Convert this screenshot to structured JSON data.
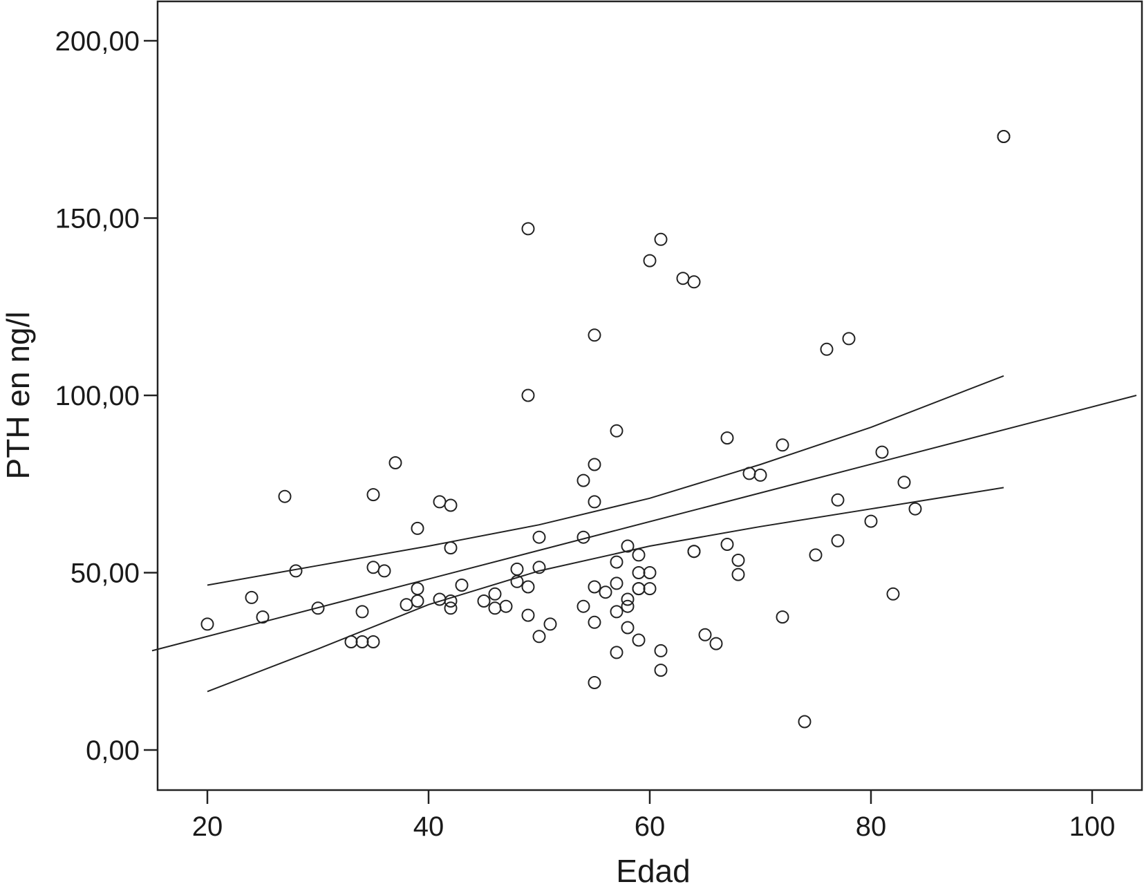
{
  "chart_data": {
    "type": "scatter",
    "xlabel": "Edad",
    "ylabel": "PTH en ng/l",
    "xlim": [
      15,
      104
    ],
    "ylim": [
      -10,
      211
    ],
    "x_ticks": [
      {
        "value": 20,
        "label": "20"
      },
      {
        "value": 40,
        "label": "40"
      },
      {
        "value": 60,
        "label": "60"
      },
      {
        "value": 80,
        "label": "80"
      },
      {
        "value": 100,
        "label": "100"
      }
    ],
    "y_ticks": [
      {
        "value": 0,
        "label": "0,00"
      },
      {
        "value": 50,
        "label": "50,00"
      },
      {
        "value": 100,
        "label": "100,00"
      },
      {
        "value": 150,
        "label": "150,00"
      },
      {
        "value": 200,
        "label": "200,00"
      }
    ],
    "grid": false,
    "marker": "open-circle",
    "points": [
      [
        20,
        35.5
      ],
      [
        24,
        43
      ],
      [
        25,
        37.5
      ],
      [
        27,
        71.5
      ],
      [
        28,
        50.5
      ],
      [
        30,
        40
      ],
      [
        33,
        30.5
      ],
      [
        34,
        30.5
      ],
      [
        34,
        39
      ],
      [
        35,
        30.5
      ],
      [
        35,
        72
      ],
      [
        35,
        51.5
      ],
      [
        36,
        50.5
      ],
      [
        37,
        81
      ],
      [
        38,
        41
      ],
      [
        39,
        42
      ],
      [
        39,
        45.5
      ],
      [
        39,
        62.5
      ],
      [
        41,
        42.5
      ],
      [
        41,
        70
      ],
      [
        42,
        69
      ],
      [
        42,
        57
      ],
      [
        42,
        42
      ],
      [
        42,
        40
      ],
      [
        43,
        46.5
      ],
      [
        45,
        42
      ],
      [
        46,
        44
      ],
      [
        46,
        40
      ],
      [
        47,
        40.5
      ],
      [
        48,
        51
      ],
      [
        48,
        47.5
      ],
      [
        49,
        147
      ],
      [
        49,
        100
      ],
      [
        49,
        46
      ],
      [
        49,
        38
      ],
      [
        50,
        60
      ],
      [
        50,
        51.5
      ],
      [
        50,
        32
      ],
      [
        51,
        35.5
      ],
      [
        54,
        76
      ],
      [
        54,
        60
      ],
      [
        54,
        40.5
      ],
      [
        55,
        117
      ],
      [
        55,
        80.5
      ],
      [
        55,
        70
      ],
      [
        55,
        46
      ],
      [
        55,
        36
      ],
      [
        55,
        19
      ],
      [
        56,
        44.5
      ],
      [
        57,
        90
      ],
      [
        57,
        53
      ],
      [
        57,
        47
      ],
      [
        57,
        39
      ],
      [
        57,
        27.5
      ],
      [
        58,
        57.5
      ],
      [
        58,
        42.5
      ],
      [
        58,
        40.5
      ],
      [
        58,
        34.5
      ],
      [
        59,
        55
      ],
      [
        59,
        50
      ],
      [
        59,
        45.5
      ],
      [
        59,
        45.5
      ],
      [
        59,
        31
      ],
      [
        60,
        138
      ],
      [
        60,
        50
      ],
      [
        60,
        45.5
      ],
      [
        61,
        144
      ],
      [
        61,
        28
      ],
      [
        61,
        22.5
      ],
      [
        63,
        133
      ],
      [
        64,
        132
      ],
      [
        64,
        56
      ],
      [
        64,
        56
      ],
      [
        65,
        32.5
      ],
      [
        66,
        30
      ],
      [
        67,
        88
      ],
      [
        67,
        58
      ],
      [
        68,
        53.5
      ],
      [
        68,
        49.5
      ],
      [
        69,
        78
      ],
      [
        70,
        77.5
      ],
      [
        72,
        86
      ],
      [
        72,
        37.5
      ],
      [
        74,
        8
      ],
      [
        75,
        55
      ],
      [
        76,
        113
      ],
      [
        77,
        70.5
      ],
      [
        77,
        59
      ],
      [
        78,
        116
      ],
      [
        80,
        64.5
      ],
      [
        81,
        84
      ],
      [
        82,
        44
      ],
      [
        83,
        75.5
      ],
      [
        84,
        68
      ],
      [
        92,
        173
      ],
      [
        92,
        173
      ]
    ],
    "fit_line": {
      "x": [
        15,
        104
      ],
      "y": [
        28,
        100
      ]
    },
    "confidence_upper": {
      "x": [
        20,
        30,
        40,
        50,
        60,
        70,
        80,
        92
      ],
      "y": [
        46.5,
        52,
        57.5,
        63.5,
        71,
        80.5,
        91,
        105.5
      ]
    },
    "confidence_lower": {
      "x": [
        20,
        30,
        40,
        50,
        60,
        70,
        80,
        92
      ],
      "y": [
        16.5,
        28.5,
        41,
        50.5,
        57.5,
        63,
        68,
        74
      ]
    }
  }
}
